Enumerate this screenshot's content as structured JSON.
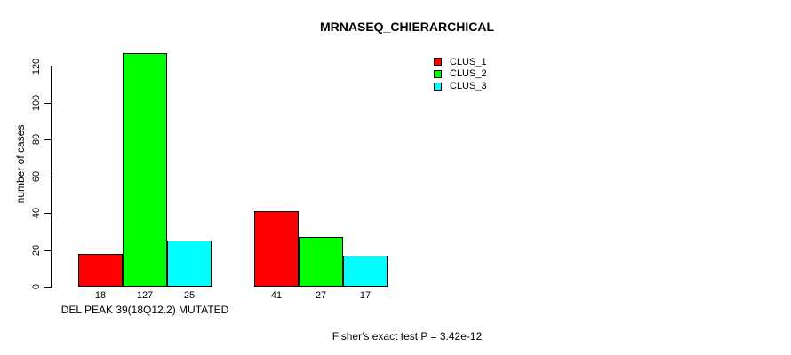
{
  "chart_data": {
    "type": "bar",
    "title": "MRNASEQ_CHIERARCHICAL",
    "ylabel": "number of cases",
    "xlabel": "DEL PEAK 39(18Q12.2) MUTATED",
    "annotation": "Fisher's exact test P = 3.42e-12",
    "ylim": [
      0,
      120
    ],
    "yticks": [
      0,
      20,
      40,
      60,
      80,
      100,
      120
    ],
    "grid": false,
    "bar_value_labels": true,
    "groups": [
      {
        "label": "DEL PEAK 39(18Q12.2) MUTATED",
        "values": [
          18,
          127,
          25
        ]
      },
      {
        "label": "",
        "values": [
          41,
          27,
          17
        ]
      }
    ],
    "series": [
      {
        "name": "CLUS_1",
        "color": "#FF0000",
        "values": [
          18,
          41
        ]
      },
      {
        "name": "CLUS_2",
        "color": "#00FF00",
        "values": [
          127,
          27
        ]
      },
      {
        "name": "CLUS_3",
        "color": "#00FFFF",
        "values": [
          25,
          17
        ]
      }
    ],
    "legend": {
      "position": "top-right",
      "entries": [
        {
          "label": "CLUS_1",
          "color": "#FF0000"
        },
        {
          "label": "CLUS_2",
          "color": "#00FF00"
        },
        {
          "label": "CLUS_3",
          "color": "#00FFFF"
        }
      ]
    },
    "axis_color": "#000000",
    "text_color": "#000000",
    "background_color": "#FFFFFF"
  }
}
